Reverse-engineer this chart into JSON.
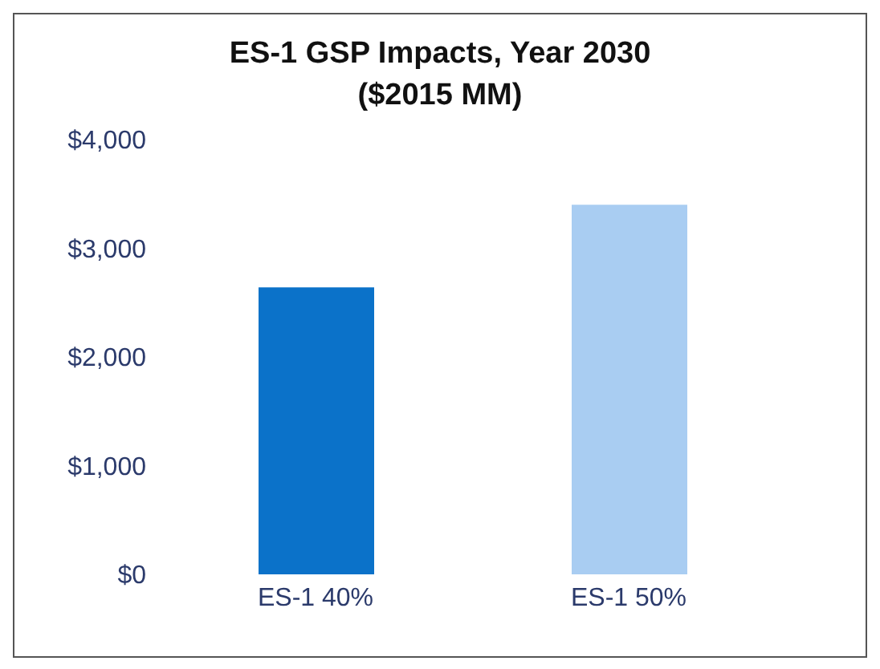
{
  "chart_data": {
    "type": "bar",
    "title": "ES-1 GSP Impacts, Year 2030 ($2015 MM)",
    "categories": [
      "ES-1 40%",
      "ES-1 50%"
    ],
    "values": [
      2640,
      3400
    ],
    "colors": [
      "#0b72c9",
      "#a9cdf2"
    ],
    "ylim": [
      0,
      4000
    ],
    "yticks": [
      {
        "value": 0,
        "label": "$0"
      },
      {
        "value": 1000,
        "label": "$1,000"
      },
      {
        "value": 2000,
        "label": "$2,000"
      },
      {
        "value": 3000,
        "label": "$3,000"
      },
      {
        "value": 4000,
        "label": "$4,000"
      }
    ],
    "grid": false,
    "legend": false
  }
}
